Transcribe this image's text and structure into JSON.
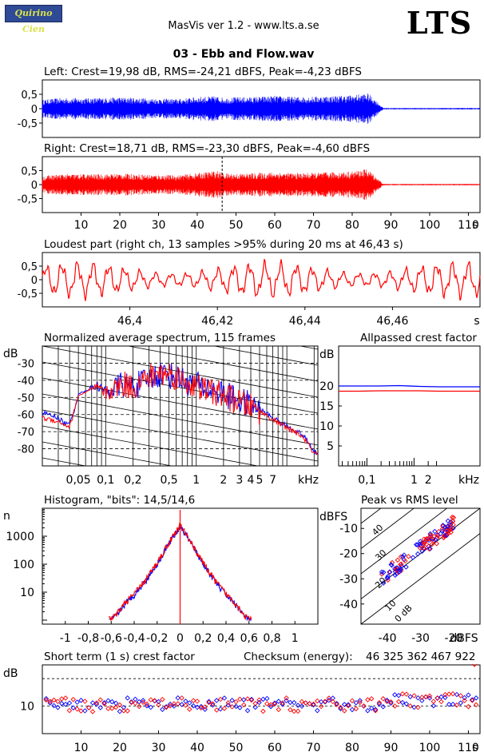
{
  "header": {
    "logo": "Quirino Cien",
    "app_title": "MasVis ver 1.2 - www.lts.a.se",
    "brand": "LTS",
    "file_name": "03 - Ebb and Flow.wav"
  },
  "colors": {
    "left": "#0000ff",
    "right": "#ff0000",
    "grid": "#000000"
  },
  "chart_data": [
    {
      "id": "left",
      "type": "line",
      "title": "Left: Crest=19,98 dB, RMS=-24,21 dBFS, Peak=-4,23 dBFS",
      "y_ticks": [
        "0,5",
        "0",
        "-0,5"
      ],
      "ylim": [
        -1,
        1
      ],
      "xlim": [
        0,
        113
      ],
      "envelope": {
        "x": [
          0,
          5,
          10,
          15,
          20,
          25,
          30,
          35,
          40,
          45,
          47,
          50,
          55,
          60,
          65,
          70,
          75,
          80,
          84,
          86,
          88,
          113
        ],
        "amplitude": [
          0.25,
          0.3,
          0.3,
          0.3,
          0.32,
          0.3,
          0.28,
          0.27,
          0.33,
          0.35,
          0.3,
          0.32,
          0.33,
          0.36,
          0.33,
          0.34,
          0.36,
          0.38,
          0.43,
          0.25,
          0.02,
          0.02
        ]
      }
    },
    {
      "id": "right",
      "type": "line",
      "title": "Right: Crest=18,71 dB, RMS=-23,30 dBFS, Peak=-4,60 dBFS",
      "y_ticks": [
        "0,5",
        "0",
        "-0,5"
      ],
      "ylim": [
        -1,
        1
      ],
      "xlim": [
        0,
        113
      ],
      "x_ticks": [
        "10",
        "20",
        "30",
        "40",
        "50",
        "60",
        "70",
        "80",
        "90",
        "100",
        "110",
        "s"
      ],
      "marker_x": 46.43,
      "envelope": {
        "x": [
          0,
          5,
          10,
          15,
          20,
          25,
          30,
          35,
          40,
          45,
          47,
          50,
          55,
          60,
          65,
          70,
          75,
          80,
          84,
          86,
          88,
          113
        ],
        "amplitude": [
          0.25,
          0.3,
          0.3,
          0.3,
          0.32,
          0.3,
          0.28,
          0.27,
          0.33,
          0.4,
          0.32,
          0.32,
          0.33,
          0.36,
          0.33,
          0.34,
          0.36,
          0.38,
          0.45,
          0.25,
          0.02,
          0.02
        ]
      }
    },
    {
      "id": "loudest",
      "type": "line",
      "title": "Loudest part (right ch, 13 samples >95% during 20 ms at 46,43 s)",
      "y_ticks": [
        "0,5",
        "0",
        "-0,5"
      ],
      "x_ticks": [
        "46,4",
        "46,42",
        "46,44",
        "46,46",
        "s"
      ],
      "xlim": [
        46.38,
        46.48
      ],
      "ylim": [
        -1,
        1
      ]
    },
    {
      "id": "spectrum",
      "type": "line",
      "title": "Normalized average spectrum, 115 frames",
      "ylabel": "dB",
      "y_ticks": [
        "-30",
        "-40",
        "-50",
        "-60",
        "-70",
        "-80"
      ],
      "x_ticks": [
        "0,05",
        "0,1",
        "0,2",
        "0,5",
        "1",
        "2",
        "3",
        "4",
        "5",
        "7",
        "kHz"
      ],
      "ylim": [
        -90,
        -20
      ],
      "xlim_khz": [
        0.02,
        22
      ],
      "series": [
        {
          "name": "Left",
          "x_khz": [
            0.02,
            0.03,
            0.035,
            0.04,
            0.05,
            0.06,
            0.08,
            0.1,
            0.15,
            0.2,
            0.3,
            0.4,
            0.5,
            0.7,
            1,
            2,
            3,
            5,
            7,
            10,
            15,
            20
          ],
          "values": [
            -59,
            -62,
            -65,
            -66,
            -48,
            -46,
            -43,
            -47,
            -42,
            -44,
            -39,
            -36,
            -37,
            -40,
            -43,
            -48,
            -52,
            -57,
            -62,
            -67,
            -72,
            -82
          ]
        },
        {
          "name": "Right",
          "x_khz": [
            0.02,
            0.03,
            0.035,
            0.04,
            0.05,
            0.06,
            0.08,
            0.1,
            0.15,
            0.2,
            0.3,
            0.4,
            0.5,
            0.7,
            1,
            2,
            3,
            5,
            7,
            10,
            15,
            20
          ],
          "values": [
            -62,
            -64,
            -66,
            -67,
            -49,
            -47,
            -44,
            -48,
            -42,
            -44,
            -38,
            -36,
            -36,
            -40,
            -44,
            -49,
            -53,
            -58,
            -63,
            -68,
            -73,
            -83
          ]
        }
      ]
    },
    {
      "id": "allpass",
      "type": "line",
      "title": "Allpassed crest factor",
      "ylabel": "dB",
      "y_ticks": [
        "20",
        "15",
        "10",
        "5"
      ],
      "x_ticks": [
        "0,1",
        "1",
        "2",
        "kHz"
      ],
      "ylim": [
        0,
        30
      ],
      "series": [
        {
          "name": "Left",
          "values": [
            20.0,
            20.0,
            20.0,
            20.1,
            19.9,
            19.8,
            19.8,
            19.8
          ]
        },
        {
          "name": "Right",
          "values": [
            18.7,
            18.7,
            18.8,
            18.8,
            18.8,
            18.7,
            18.7,
            18.7
          ]
        }
      ]
    },
    {
      "id": "histogram",
      "type": "line",
      "title": "Histogram, \"bits\": 14,5/14,6",
      "ylabel": "n",
      "y_ticks": [
        "1000",
        "100",
        "10"
      ],
      "x_ticks": [
        "-1",
        "-0,8",
        "-0,6",
        "-0,4",
        "-0,2",
        "0",
        "0,2",
        "0,4",
        "0,6",
        "0,8",
        "1"
      ],
      "xlim": [
        -1.2,
        1.2
      ],
      "x": [
        -0.6,
        -0.55,
        -0.5,
        -0.45,
        -0.4,
        -0.35,
        -0.3,
        -0.25,
        -0.2,
        -0.15,
        -0.1,
        -0.05,
        -0.02,
        0,
        0.02,
        0.05,
        0.1,
        0.15,
        0.2,
        0.25,
        0.3,
        0.35,
        0.4,
        0.45,
        0.5,
        0.55,
        0.6
      ],
      "counts": [
        1,
        1.5,
        3,
        5,
        8,
        14,
        25,
        50,
        100,
        220,
        500,
        1100,
        1700,
        2400,
        1700,
        1100,
        500,
        220,
        100,
        50,
        25,
        14,
        8,
        5,
        3,
        1.5,
        1
      ]
    },
    {
      "id": "peak_rms",
      "type": "scatter",
      "title": "Peak vs RMS level",
      "ylabel": "dBFS",
      "xlabel": "dBFS",
      "y_ticks": [
        "-10",
        "-20",
        "-30",
        "-40"
      ],
      "x_ticks": [
        "-40",
        "-30",
        "-20"
      ],
      "diag_labels": [
        "40",
        "30",
        "20",
        "10",
        "0 dB"
      ],
      "xlim": [
        -48,
        -12
      ],
      "ylim": [
        -48,
        -2
      ]
    },
    {
      "id": "short_crest",
      "type": "scatter",
      "title": "Short term (1 s) crest factor",
      "checksum_label": "Checksum (energy):",
      "checksum_value": "46 325 362 467 922",
      "ylabel": "dB",
      "y_ticks": [
        "10"
      ],
      "x_ticks": [
        "10",
        "20",
        "30",
        "40",
        "50",
        "60",
        "70",
        "80",
        "90",
        "100",
        "110",
        "s"
      ],
      "xlim": [
        0,
        113
      ],
      "ylim": [
        0,
        25
      ]
    }
  ]
}
